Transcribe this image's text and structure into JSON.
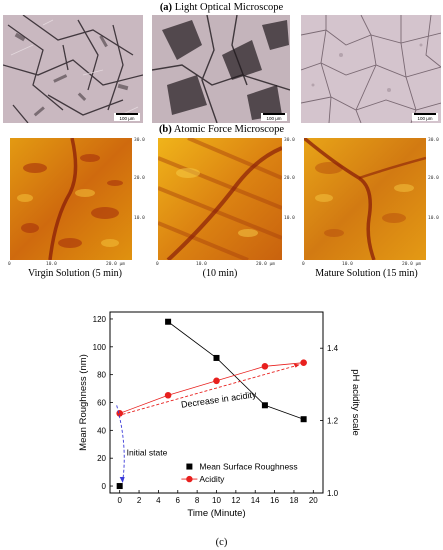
{
  "panel_a": {
    "label": "(a)",
    "title": "Light Optical Microscope",
    "scalebar_labels": [
      "100 μm",
      "100 μm",
      "100 μm"
    ]
  },
  "panel_b": {
    "label": "(b)",
    "title": "Atomic Force Microscope",
    "afm_axes": [
      {
        "x_ticks": [
          "0",
          "10.0",
          "20.0 μm"
        ],
        "y_ticks": [
          "30.0",
          "20.0",
          "10.0"
        ]
      },
      {
        "x_ticks": [
          "0",
          "10.0",
          "20.0 μm"
        ],
        "y_ticks": [
          "30.0",
          "20.0",
          "10.0"
        ]
      },
      {
        "x_ticks": [
          "0",
          "10.0",
          "20.0 μm"
        ],
        "y_ticks": [
          "30.0",
          "20.0",
          "10.0"
        ]
      }
    ],
    "solution_labels": [
      "Virgin Solution (5 min)",
      "(10 min)",
      "Mature Solution (15 min)"
    ]
  },
  "panel_c": {
    "label": "(c)"
  },
  "chart_data": {
    "type": "line",
    "xlabel": "Time (Minute)",
    "ylabel": "Mean Roughness (nm)",
    "y2label": "pH acidity scale",
    "xlim": [
      -1,
      21
    ],
    "ylim": [
      -5,
      125
    ],
    "y2lim": [
      1.0,
      1.5
    ],
    "x_ticks": [
      0,
      2,
      4,
      6,
      8,
      10,
      12,
      14,
      16,
      18,
      20
    ],
    "y_ticks": [
      0,
      20,
      40,
      60,
      80,
      100,
      120
    ],
    "y2_ticks": [
      1.0,
      1.2,
      1.4
    ],
    "series": [
      {
        "name": "Mean Surface Roughness",
        "axis": "left",
        "marker": "square",
        "color": "#000000",
        "x": [
          0,
          5,
          10,
          15,
          19
        ],
        "y": [
          0,
          118,
          92,
          58,
          48
        ]
      },
      {
        "name": "Acidity",
        "axis": "right",
        "marker": "circle",
        "color": "#e8201e",
        "x": [
          0,
          5,
          10,
          15,
          19
        ],
        "y": [
          1.22,
          1.27,
          1.31,
          1.35,
          1.36
        ]
      }
    ],
    "annotations": [
      {
        "text": "Decrease in acidity",
        "color": "#000000"
      },
      {
        "text": "Initial state",
        "color": "#000000"
      }
    ],
    "legend_position": "bottom-right"
  }
}
